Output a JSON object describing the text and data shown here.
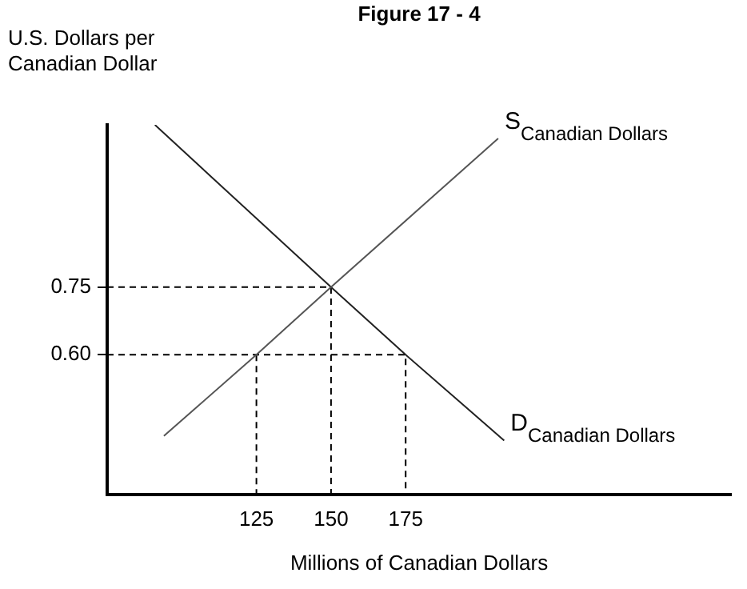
{
  "chart_data": {
    "type": "line",
    "title": "Figure 17 - 4",
    "xlabel": "Millions of Canadian Dollars",
    "ylabel": "U.S. Dollars per\nCanadian Dollar",
    "xlim": [
      75,
      284
    ],
    "ylim": [
      0.29,
      1.11
    ],
    "xticks": [
      125,
      150,
      175
    ],
    "yticks": [
      {
        "value": 0.6,
        "label": "0.60"
      },
      0.75
    ],
    "grid": false,
    "legend": false,
    "marker": "none",
    "series": [
      {
        "name": "S$_{Canadian Dollars}$",
        "color": "#555555",
        "line_style": "solid",
        "x": [
          94,
          125,
          150,
          206
        ],
        "values": [
          0.42,
          0.6,
          0.75,
          1.08
        ]
      },
      {
        "name": "D$_{Canadian Dollars}$",
        "color": "#222222",
        "line_style": "solid",
        "x": [
          91,
          150,
          175,
          208
        ],
        "values": [
          1.11,
          0.75,
          0.6,
          0.41
        ]
      },
      {
        "color": "#000000",
        "line_style": "dashed",
        "x": [
          75,
          150,
          150
        ],
        "values": [
          0.75,
          0.75,
          0.29
        ]
      },
      {
        "color": "#000000",
        "line_style": "dashed",
        "x": [
          75,
          175,
          175
        ],
        "values": [
          0.6,
          0.6,
          0.29
        ]
      },
      {
        "color": "#000000",
        "line_style": "dashed",
        "x": [
          125,
          125
        ],
        "values": [
          0.6,
          0.29
        ]
      }
    ]
  }
}
